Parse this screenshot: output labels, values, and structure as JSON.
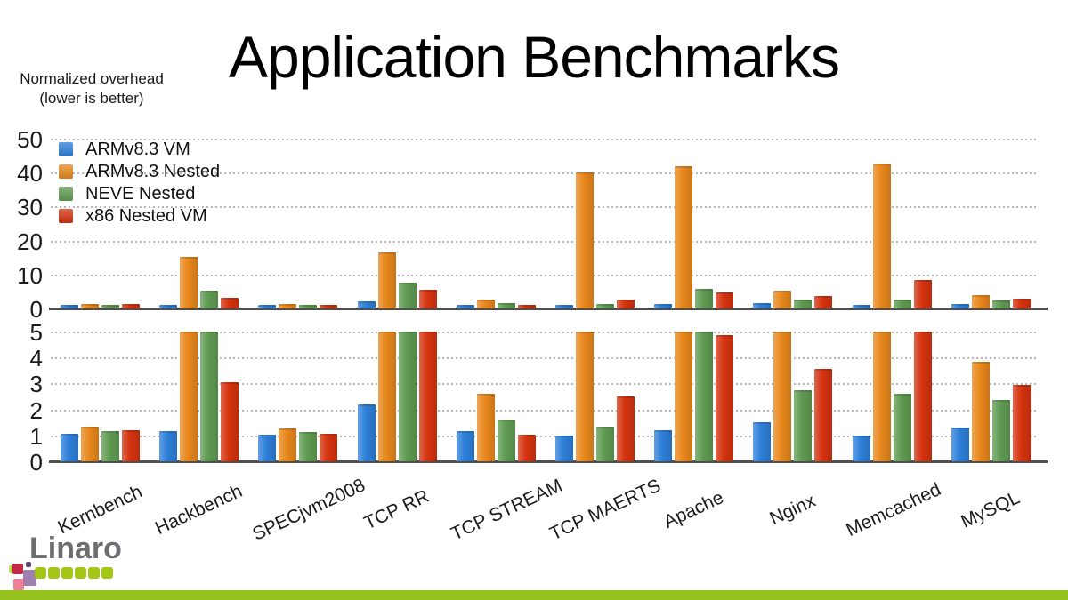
{
  "slide": {
    "title": "Application Benchmarks",
    "note_line1": "Normalized overhead",
    "note_line2": "(lower is better)",
    "logo_text": "Linaro"
  },
  "chart_data": {
    "type": "bar",
    "title": "Application Benchmarks",
    "note": "Normalized overhead (lower is better)",
    "orientation": "vertical",
    "grid": "dotted horizontal",
    "legend_position": "top-left",
    "categories": [
      "Kernbench",
      "Hackbench",
      "SPECjvm2008",
      "TCP RR",
      "TCP STREAM",
      "TCP MAERTS",
      "Apache",
      "Nginx",
      "Memcached",
      "MySQL"
    ],
    "series": [
      {
        "name": "ARMv8.3 VM",
        "color": "#2e7fd9",
        "values": [
          1.05,
          1.15,
          1.03,
          2.2,
          1.15,
          1.0,
          1.2,
          1.5,
          1.0,
          1.3
        ]
      },
      {
        "name": "ARMv8.3 Nested",
        "color": "#e8871c",
        "values": [
          1.33,
          15.2,
          1.28,
          16.5,
          2.6,
          40.0,
          42.0,
          5.2,
          42.8,
          3.85
        ]
      },
      {
        "name": "NEVE Nested",
        "color": "#5f9b52",
        "values": [
          1.17,
          5.3,
          1.12,
          7.7,
          1.6,
          1.35,
          5.75,
          2.75,
          2.6,
          2.35
        ]
      },
      {
        "name": "x86 Nested VM",
        "color": "#d5330f",
        "values": [
          1.2,
          3.05,
          1.08,
          5.4,
          1.03,
          2.5,
          4.85,
          3.55,
          8.5,
          2.95
        ]
      }
    ],
    "panels": [
      {
        "id": "top",
        "ylim": [
          0,
          50
        ],
        "ticks": [
          0,
          10,
          20,
          30,
          40,
          50
        ],
        "description": "full scale"
      },
      {
        "id": "bottom",
        "ylim": [
          0,
          5
        ],
        "ticks": [
          0,
          1,
          2,
          3,
          4,
          5
        ],
        "description": "zoomed view, bars clipped at 5"
      }
    ]
  },
  "footer": {
    "stripe_color": "#95c11f",
    "logo_square_color": "#a4c616",
    "logo_text_color": "#6d6e71"
  }
}
